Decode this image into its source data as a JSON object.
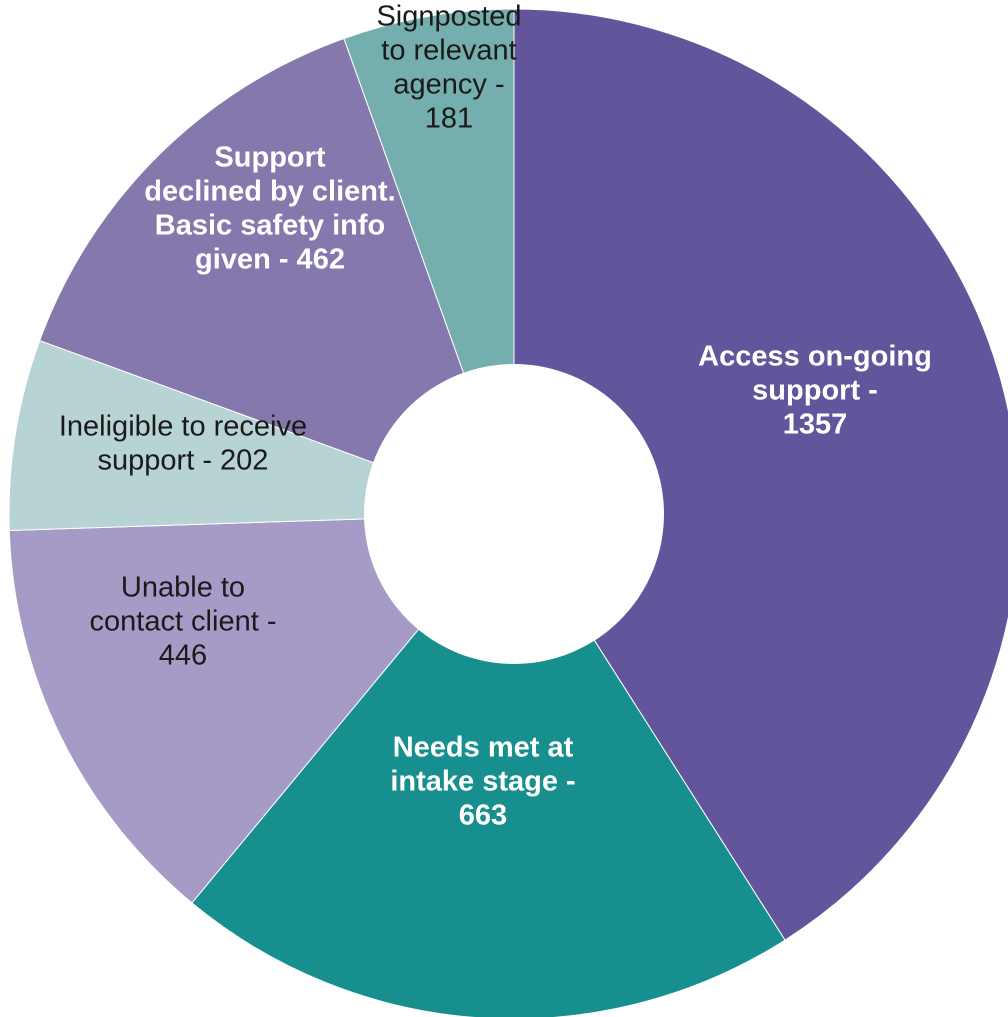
{
  "chart_data": {
    "type": "pie",
    "donut": true,
    "title": "",
    "slices": [
      {
        "label": [
          "Access on-going",
          "support -",
          "1357"
        ],
        "value": 1357,
        "color": "#63559b",
        "text_color": "#ffffff",
        "bold": true
      },
      {
        "label": [
          "Needs met at",
          "intake stage -",
          "663"
        ],
        "value": 663,
        "color": "#188f8f",
        "text_color": "#ffffff",
        "bold": true
      },
      {
        "label": [
          "Unable to",
          "contact client -",
          "446"
        ],
        "value": 446,
        "color": "#a69bc6",
        "text_color": "#1a1a1a",
        "bold": false
      },
      {
        "label": [
          "Ineligible to receive",
          "support - 202"
        ],
        "value": 202,
        "color": "#b7d3d4",
        "text_color": "#1a1a1a",
        "bold": false
      },
      {
        "label": [
          "Support",
          "declined by client.",
          "Basic safety info",
          "given - 462"
        ],
        "value": 462,
        "color": "#8478ad",
        "text_color": "#ffffff",
        "bold": true
      },
      {
        "label": [
          "Signposted",
          "to relevant",
          "agency -",
          "181"
        ],
        "value": 181,
        "color": "#75aeae",
        "text_color": "#1a1a1a",
        "bold": false
      }
    ]
  }
}
